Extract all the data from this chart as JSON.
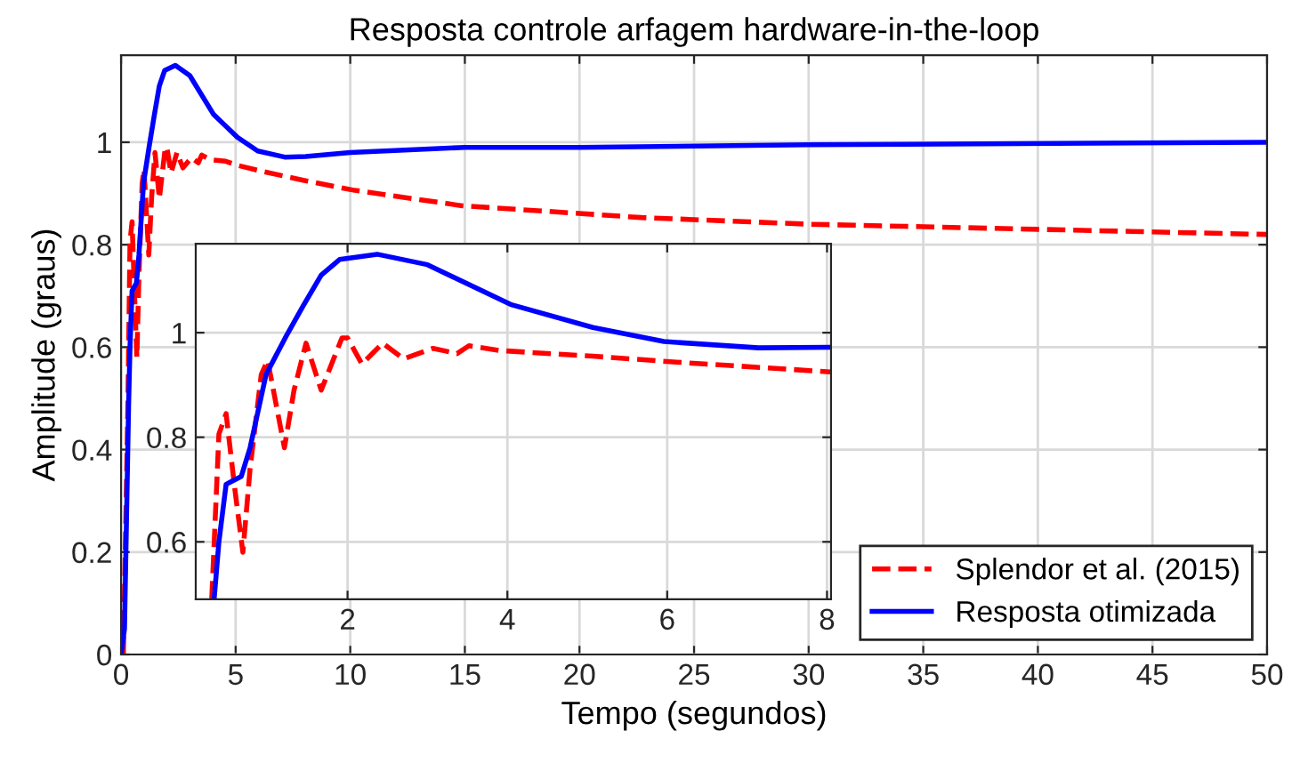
{
  "chart_data": [
    {
      "type": "line",
      "title": "Resposta controle arfagem hardware-in-the-loop",
      "xlabel": "Tempo (segundos)",
      "ylabel": "Amplitude (graus)",
      "xlim": [
        0,
        50
      ],
      "xticks": [
        0,
        5,
        10,
        15,
        20,
        25,
        30,
        35,
        40,
        45,
        50
      ],
      "ylim": [
        0,
        1.17
      ],
      "yticks": [
        0,
        0.2,
        0.4,
        0.6,
        0.8,
        1
      ],
      "grid": true,
      "legend": "bottom right",
      "series": [
        {
          "name": "Splendor et al. (2015)",
          "color": "#ff0000",
          "line_style": "dashed",
          "x": [
            0.1,
            0.3,
            0.39,
            0.48,
            0.59,
            0.69,
            0.78,
            0.92,
            1.0,
            1.21,
            1.33,
            1.48,
            1.67,
            1.93,
            2.0,
            2.18,
            2.44,
            2.7,
            3.07,
            3.37,
            3.52,
            3.89,
            4.56,
            5.07,
            6.18,
            8.04,
            10.2,
            14.9,
            22.7,
            30,
            40,
            50
          ],
          "values": [
            0,
            0.49,
            0.806,
            0.845,
            0.7,
            0.58,
            0.74,
            0.92,
            0.947,
            0.78,
            0.89,
            0.98,
            0.89,
            0.99,
            0.99,
            0.94,
            0.98,
            0.95,
            0.97,
            0.96,
            0.975,
            0.966,
            0.963,
            0.955,
            0.943,
            0.925,
            0.906,
            0.876,
            0.853,
            0.84,
            0.83,
            0.82
          ]
        },
        {
          "name": "Resposta otimizada",
          "color": "#0000ff",
          "line_style": "solid",
          "x": [
            0,
            0.15,
            0.33,
            0.39,
            0.48,
            0.67,
            0.78,
            0.98,
            1.22,
            1.44,
            1.67,
            1.9,
            2.37,
            3.0,
            4.04,
            5.07,
            5.96,
            7.14,
            8.05,
            10,
            15,
            20,
            30,
            50
          ],
          "values": [
            0,
            0.05,
            0.49,
            0.6,
            0.71,
            0.725,
            0.78,
            0.92,
            0.99,
            1.05,
            1.11,
            1.14,
            1.15,
            1.13,
            1.054,
            1.01,
            0.983,
            0.971,
            0.972,
            0.98,
            0.99,
            0.99,
            0.995,
            1.0
          ]
        }
      ]
    },
    {
      "type": "line",
      "xlim": [
        0.1,
        8.05
      ],
      "xticks": [
        2,
        4,
        6,
        8
      ],
      "ylim": [
        0.49,
        1.17
      ],
      "yticks": [
        0.6,
        0.8,
        1
      ],
      "grid": true,
      "series": [
        {
          "color": "#ff0000",
          "line_style": "dashed",
          "x": [
            0.3,
            0.39,
            0.48,
            0.59,
            0.69,
            0.78,
            0.92,
            1.0,
            1.21,
            1.33,
            1.48,
            1.67,
            1.93,
            2.0,
            2.18,
            2.44,
            2.7,
            3.07,
            3.37,
            3.52,
            3.89,
            5.07,
            6.18,
            8.04
          ],
          "values": [
            0.49,
            0.806,
            0.845,
            0.7,
            0.58,
            0.74,
            0.92,
            0.947,
            0.78,
            0.89,
            0.98,
            0.89,
            0.99,
            0.99,
            0.94,
            0.98,
            0.95,
            0.97,
            0.96,
            0.975,
            0.966,
            0.955,
            0.943,
            0.925
          ]
        },
        {
          "color": "#0000ff",
          "line_style": "solid",
          "x": [
            0.33,
            0.39,
            0.48,
            0.67,
            0.78,
            0.98,
            1.22,
            1.44,
            1.67,
            1.9,
            2.37,
            3.0,
            4.04,
            5.07,
            5.96,
            7.14,
            8.05
          ],
          "values": [
            0.49,
            0.6,
            0.71,
            0.725,
            0.78,
            0.92,
            0.99,
            1.05,
            1.11,
            1.14,
            1.15,
            1.13,
            1.054,
            1.01,
            0.983,
            0.971,
            0.972
          ]
        }
      ]
    }
  ]
}
